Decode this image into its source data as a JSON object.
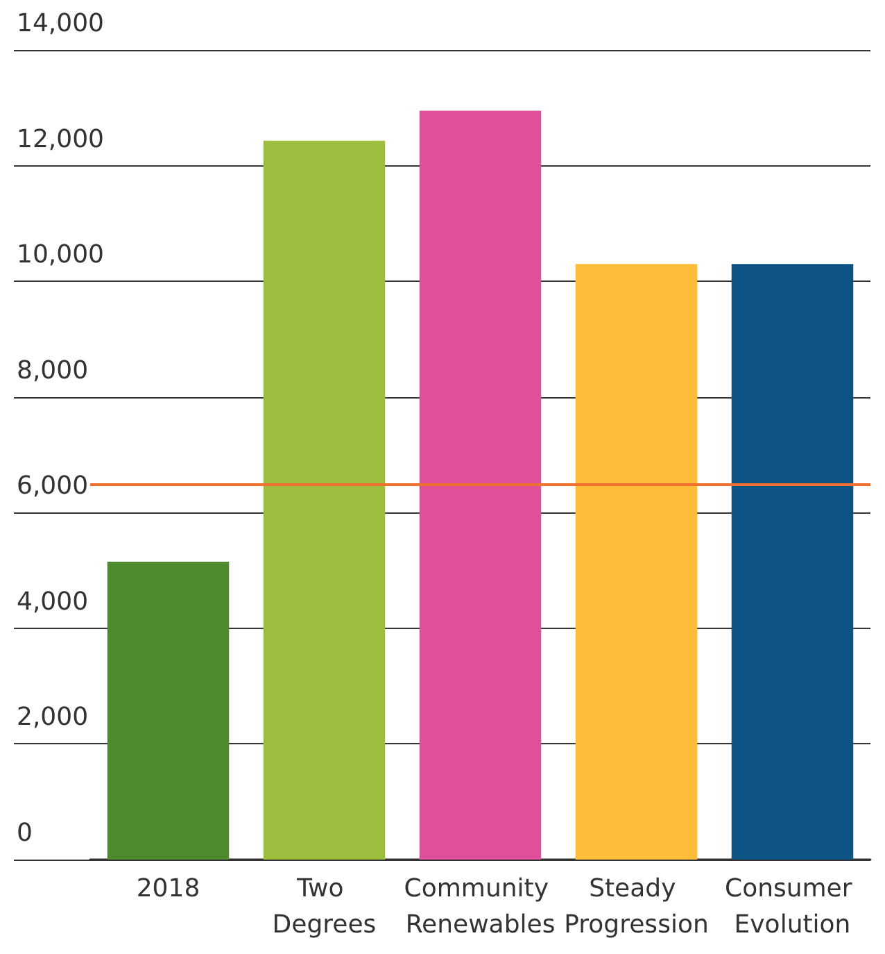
{
  "chart_data": {
    "type": "bar",
    "categories": [
      "2018",
      "Two Degrees",
      "Community Renewables",
      "Steady Progression",
      "Consumer Evolution"
    ],
    "values": [
      5150,
      12430,
      12950,
      10300,
      10300
    ],
    "colors": [
      "#4e8a2e",
      "#9cbe3e",
      "#e0509a",
      "#fdbd3a",
      "#0d5485"
    ],
    "ylim": [
      0,
      14000
    ],
    "yticks": [
      0,
      {
        "value": 2000,
        "label": "2,000"
      },
      {
        "value": 4000,
        "label": "4,000"
      },
      {
        "value": 6000,
        "label": "6,000"
      },
      {
        "value": 8000,
        "label": "8,000"
      },
      {
        "value": 10000,
        "label": "10,000"
      },
      {
        "value": 12000,
        "label": "12,000"
      },
      {
        "value": 14000,
        "label": "14,000"
      }
    ],
    "grid": "y",
    "ref_lines": [
      {
        "axis": "y",
        "value": 6500,
        "color": "#f07030"
      }
    ]
  }
}
